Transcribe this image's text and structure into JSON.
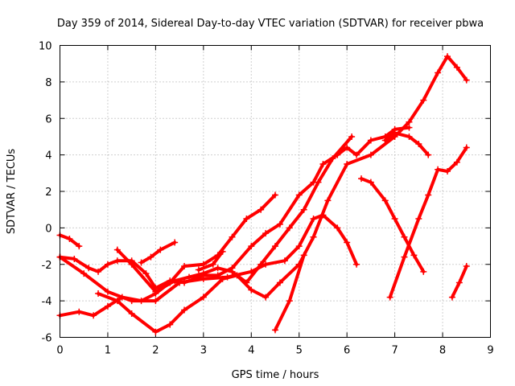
{
  "chart_data": {
    "type": "scatter",
    "title": "Day 359 of 2014, Sidereal Day-to-day VTEC variation (SDTVAR) for receiver pbwa",
    "xlabel": "GPS time / hours",
    "ylabel": "SDTVAR / TECUs",
    "xlim": [
      0,
      9
    ],
    "ylim": [
      -6,
      10
    ],
    "xticks": [
      "0",
      "1",
      "2",
      "3",
      "4",
      "5",
      "6",
      "7",
      "8",
      "9"
    ],
    "yticks": [
      "-6",
      "-4",
      "-2",
      "0",
      "2",
      "4",
      "6",
      "8",
      "10"
    ],
    "grid": true,
    "marker": "+",
    "color": "#ff0000",
    "series": [
      {
        "name": "s1",
        "points": [
          [
            0,
            -0.4
          ],
          [
            0.2,
            -0.6
          ],
          [
            0.4,
            -1.0
          ]
        ]
      },
      {
        "name": "s2",
        "points": [
          [
            0,
            -1.6
          ],
          [
            0.3,
            -1.7
          ],
          [
            0.6,
            -2.2
          ],
          [
            0.8,
            -2.4
          ],
          [
            1.0,
            -2.0
          ],
          [
            1.2,
            -1.8
          ],
          [
            1.5,
            -1.8
          ],
          [
            1.8,
            -2.5
          ],
          [
            2.0,
            -3.3
          ],
          [
            2.3,
            -2.9
          ],
          [
            2.6,
            -3.0
          ],
          [
            3.0,
            -2.6
          ],
          [
            3.3,
            -2.6
          ],
          [
            3.6,
            -2.2
          ],
          [
            4.0,
            -1.0
          ],
          [
            4.3,
            -0.3
          ],
          [
            4.6,
            0.2
          ],
          [
            5.0,
            1.8
          ],
          [
            5.3,
            2.5
          ],
          [
            5.5,
            3.5
          ],
          [
            5.8,
            4.0
          ],
          [
            6.0,
            4.4
          ],
          [
            6.2,
            4.0
          ],
          [
            6.5,
            4.8
          ],
          [
            6.8,
            5.0
          ],
          [
            7.0,
            5.4
          ],
          [
            7.3,
            5.5
          ]
        ]
      },
      {
        "name": "s3",
        "points": [
          [
            0,
            -1.6
          ],
          [
            0.5,
            -2.5
          ],
          [
            1.0,
            -3.5
          ],
          [
            1.5,
            -4.0
          ],
          [
            2.0,
            -4.0
          ],
          [
            2.5,
            -3.0
          ],
          [
            3.0,
            -2.8
          ],
          [
            3.5,
            -2.7
          ],
          [
            4.0,
            -2.4
          ],
          [
            4.3,
            -2.0
          ],
          [
            4.7,
            -1.8
          ],
          [
            5.0,
            -1.0
          ],
          [
            5.3,
            0.5
          ],
          [
            5.5,
            0.7
          ],
          [
            5.8,
            0.0
          ],
          [
            6.0,
            -0.8
          ],
          [
            6.2,
            -2.0
          ]
        ]
      },
      {
        "name": "s4",
        "points": [
          [
            0,
            -4.8
          ],
          [
            0.4,
            -4.6
          ],
          [
            0.7,
            -4.8
          ],
          [
            1.0,
            -4.3
          ],
          [
            1.3,
            -3.8
          ],
          [
            1.7,
            -4.0
          ],
          [
            2.0,
            -3.6
          ],
          [
            2.3,
            -3.0
          ],
          [
            2.6,
            -2.1
          ],
          [
            3.0,
            -2.0
          ],
          [
            3.3,
            -1.5
          ],
          [
            3.6,
            -0.5
          ],
          [
            3.9,
            0.5
          ],
          [
            4.2,
            1.0
          ],
          [
            4.5,
            1.8
          ]
        ]
      },
      {
        "name": "s5",
        "points": [
          [
            1.2,
            -1.2
          ],
          [
            1.5,
            -2.0
          ],
          [
            2.0,
            -3.5
          ],
          [
            2.4,
            -2.9
          ],
          [
            2.7,
            -2.7
          ],
          [
            3.0,
            -2.5
          ],
          [
            3.3,
            -2.2
          ],
          [
            3.6,
            -2.4
          ],
          [
            3.9,
            -3.0
          ],
          [
            4.2,
            -2.0
          ],
          [
            4.5,
            -1.0
          ],
          [
            4.8,
            0.0
          ],
          [
            5.1,
            1.0
          ],
          [
            5.4,
            2.5
          ],
          [
            5.7,
            3.8
          ],
          [
            6.1,
            5.0
          ]
        ]
      },
      {
        "name": "s6",
        "points": [
          [
            0.8,
            -3.6
          ],
          [
            1.2,
            -4.0
          ],
          [
            1.5,
            -4.7
          ],
          [
            2.0,
            -5.7
          ],
          [
            2.3,
            -5.3
          ],
          [
            2.6,
            -4.5
          ],
          [
            3.0,
            -3.8
          ],
          [
            3.4,
            -2.8
          ],
          [
            3.7,
            -2.6
          ],
          [
            4.0,
            -3.4
          ],
          [
            4.3,
            -3.8
          ],
          [
            4.6,
            -3.0
          ],
          [
            5.0,
            -2.0
          ],
          [
            5.3,
            -0.5
          ],
          [
            5.6,
            1.5
          ],
          [
            6.0,
            3.5
          ],
          [
            6.5,
            4.0
          ],
          [
            7.0,
            5.0
          ],
          [
            7.3,
            5.8
          ],
          [
            7.6,
            7.0
          ],
          [
            7.9,
            8.5
          ],
          [
            8.1,
            9.4
          ],
          [
            8.3,
            8.8
          ],
          [
            8.5,
            8.1
          ]
        ]
      },
      {
        "name": "s7",
        "points": [
          [
            1.7,
            -1.9
          ],
          [
            1.9,
            -1.6
          ],
          [
            2.1,
            -1.2
          ],
          [
            2.4,
            -0.8
          ]
        ]
      },
      {
        "name": "s8",
        "points": [
          [
            2.9,
            -2.3
          ],
          [
            3.2,
            -2.0
          ],
          [
            3.4,
            -1.3
          ]
        ]
      },
      {
        "name": "s9",
        "points": [
          [
            4.5,
            -5.6
          ],
          [
            4.8,
            -4.0
          ],
          [
            5.1,
            -1.5
          ]
        ]
      },
      {
        "name": "s10",
        "points": [
          [
            6.3,
            2.7
          ],
          [
            6.5,
            2.5
          ],
          [
            6.8,
            1.5
          ],
          [
            7.0,
            0.5
          ],
          [
            7.2,
            -0.5
          ],
          [
            7.4,
            -1.5
          ],
          [
            7.6,
            -2.4
          ]
        ]
      },
      {
        "name": "s11",
        "points": [
          [
            6.9,
            -3.8
          ],
          [
            7.2,
            -1.6
          ],
          [
            7.5,
            0.5
          ],
          [
            7.7,
            1.8
          ],
          [
            7.9,
            3.2
          ],
          [
            8.1,
            3.1
          ],
          [
            8.3,
            3.6
          ],
          [
            8.5,
            4.4
          ]
        ]
      },
      {
        "name": "s12",
        "points": [
          [
            8.2,
            -3.8
          ],
          [
            8.35,
            -3.0
          ],
          [
            8.5,
            -2.1
          ]
        ]
      },
      {
        "name": "s13",
        "points": [
          [
            6.8,
            4.8
          ],
          [
            7.0,
            5.2
          ],
          [
            7.3,
            5.0
          ],
          [
            7.5,
            4.6
          ],
          [
            7.7,
            4.0
          ]
        ]
      }
    ]
  }
}
